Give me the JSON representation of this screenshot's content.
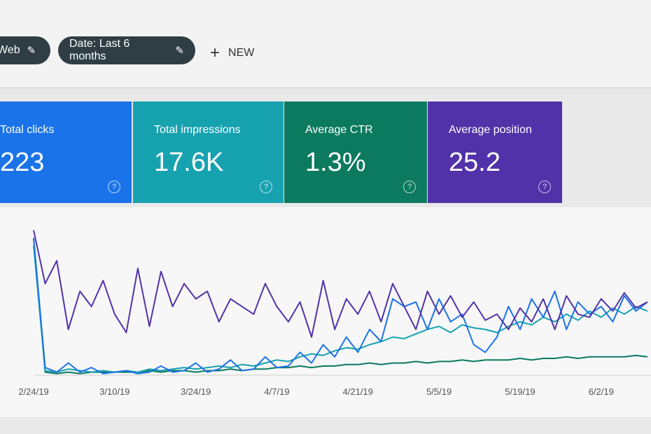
{
  "toolbar": {
    "chips": [
      "Web",
      "Date: Last 6 months"
    ],
    "new": "NEW"
  },
  "chart_data": {
    "type": "line",
    "x": [
      "2/24/19",
      null,
      null,
      null,
      null,
      null,
      null,
      "3/10/19",
      null,
      null,
      null,
      null,
      null,
      null,
      "3/24/19",
      null,
      null,
      null,
      null,
      null,
      null,
      "4/7/19",
      null,
      null,
      null,
      null,
      null,
      null,
      "4/21/19",
      null,
      null,
      null,
      null,
      null,
      null,
      "5/5/19",
      null,
      null,
      null,
      null,
      null,
      null,
      "5/19/19",
      null,
      null,
      null,
      null,
      null,
      null,
      "6/2/19",
      null,
      null,
      null,
      null
    ],
    "ylim": [
      0,
      100
    ],
    "series": [
      {
        "name": "Total clicks",
        "summary": "223",
        "color": "#1a73e8",
        "values": [
          90,
          5,
          2,
          8,
          2,
          5,
          1,
          2,
          3,
          1,
          2,
          6,
          2,
          3,
          8,
          2,
          4,
          10,
          3,
          4,
          12,
          5,
          6,
          15,
          8,
          20,
          12,
          25,
          15,
          30,
          22,
          50,
          45,
          48,
          30,
          50,
          35,
          40,
          20,
          15,
          25,
          45,
          30,
          50,
          38,
          55,
          30,
          48,
          40,
          45,
          35,
          52,
          42,
          48
        ]
      },
      {
        "name": "Total impressions",
        "summary": "17.6K",
        "color": "#17a2b0",
        "values": [
          85,
          3,
          2,
          4,
          3,
          2,
          3,
          2,
          3,
          2,
          4,
          3,
          4,
          5,
          4,
          5,
          6,
          5,
          7,
          6,
          8,
          10,
          9,
          12,
          14,
          13,
          16,
          18,
          17,
          20,
          22,
          25,
          24,
          27,
          30,
          32,
          28,
          33,
          31,
          30,
          28,
          32,
          35,
          33,
          38,
          35,
          40,
          36,
          42,
          38,
          44,
          40,
          45,
          42
        ]
      },
      {
        "name": "Average CTR",
        "summary": "1.3%",
        "color": "#0b7a5e",
        "values": [
          90,
          2,
          1,
          2,
          1,
          2,
          2,
          2,
          2,
          2,
          3,
          2,
          3,
          3,
          2,
          3,
          3,
          4,
          3,
          4,
          4,
          5,
          5,
          6,
          5,
          6,
          6,
          7,
          7,
          8,
          7,
          8,
          8,
          9,
          8,
          9,
          9,
          10,
          9,
          10,
          10,
          10,
          11,
          10,
          11,
          11,
          12,
          11,
          12,
          12,
          12,
          12,
          13,
          12
        ]
      },
      {
        "name": "Average position",
        "summary": "25.2",
        "color": "#5232a8",
        "values": [
          95,
          60,
          75,
          30,
          55,
          45,
          62,
          40,
          28,
          70,
          32,
          68,
          45,
          60,
          50,
          55,
          35,
          50,
          45,
          40,
          60,
          45,
          35,
          48,
          25,
          62,
          30,
          50,
          40,
          55,
          35,
          60,
          45,
          30,
          55,
          40,
          52,
          38,
          48,
          36,
          40,
          30,
          44,
          35,
          50,
          30,
          52,
          40,
          38,
          50,
          42,
          54,
          44,
          48
        ]
      }
    ]
  }
}
